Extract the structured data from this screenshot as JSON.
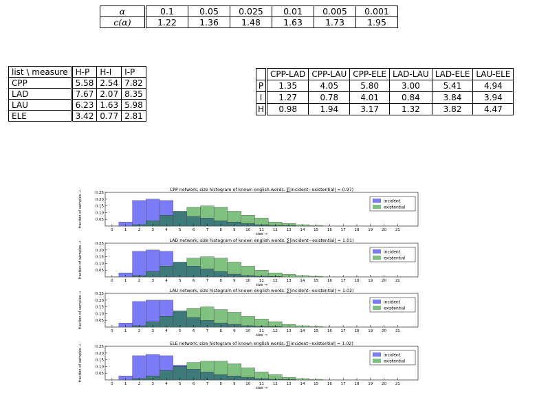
{
  "alpha_table": {
    "rows": [
      {
        "label": "α",
        "values": [
          "0.1",
          "0.05",
          "0.025",
          "0.01",
          "0.005",
          "0.001"
        ]
      },
      {
        "label": "c(α)",
        "values": [
          "1.22",
          "1.36",
          "1.48",
          "1.63",
          "1.73",
          "1.95"
        ]
      }
    ]
  },
  "measure_table": {
    "header": [
      "list \\ measure",
      "H-P",
      "H-I",
      "I-P"
    ],
    "rows": [
      {
        "label": "CPP",
        "values": [
          "5.58",
          "2.54",
          "7.82"
        ]
      },
      {
        "label": "LAD",
        "values": [
          "7.67",
          "2.07",
          "8.35"
        ]
      },
      {
        "label": "LAU",
        "values": [
          "6.23",
          "1.63",
          "5.98"
        ]
      },
      {
        "label": "ELE",
        "values": [
          "3.42",
          "0.77",
          "2.81"
        ]
      }
    ]
  },
  "pair_table": {
    "header": [
      "",
      "CPP-LAD",
      "CPP-LAU",
      "CPP-ELE",
      "LAD-LAU",
      "LAD-ELE",
      "LAU-ELE"
    ],
    "rows": [
      {
        "label": "P",
        "values": [
          "1.35",
          "4.05",
          "5.80",
          "3.00",
          "5.41",
          "4.94"
        ]
      },
      {
        "label": "I",
        "values": [
          "1.27",
          "0.78",
          "4.01",
          "0.84",
          "3.84",
          "3.94"
        ]
      },
      {
        "label": "H",
        "values": [
          "0.98",
          "1.94",
          "3.17",
          "1.32",
          "3.82",
          "4.47"
        ]
      }
    ]
  },
  "colors": {
    "incident": "#7b7bf5",
    "existential": "#80c080",
    "overlap": "#3f7a7a"
  },
  "chart_data": [
    {
      "type": "bar",
      "title": "CPP network, size histogram of known english words. ∑|incident−existential| = 0.97)",
      "xlabel": "size →",
      "ylabel": "fraction of samples →",
      "x": [
        0,
        1,
        2,
        3,
        4,
        5,
        6,
        7,
        8,
        9,
        10,
        11,
        12,
        13,
        14,
        15,
        16,
        17,
        18,
        19,
        20,
        21
      ],
      "ylim": [
        0,
        0.25
      ],
      "yticks": [
        "0.05",
        "0.10",
        "0.15",
        "0.20",
        "0.25"
      ],
      "legend_position": "top-right",
      "series": [
        {
          "name": "incident",
          "values": [
            0,
            0.03,
            0.19,
            0.2,
            0.19,
            0.11,
            0.07,
            0.06,
            0.04,
            0.03,
            0.02,
            0.01,
            0.005,
            0.003,
            0,
            0,
            0,
            0,
            0,
            0,
            0,
            0
          ]
        },
        {
          "name": "existential",
          "values": [
            0,
            0,
            0.01,
            0.04,
            0.08,
            0.11,
            0.14,
            0.15,
            0.14,
            0.11,
            0.08,
            0.06,
            0.03,
            0.02,
            0.01,
            0.005,
            0,
            0,
            0,
            0,
            0,
            0
          ]
        }
      ]
    },
    {
      "type": "bar",
      "title": "LAD network, size histogram of known english words. ∑|incident−existential| = 1.01)",
      "xlabel": "size →",
      "ylabel": "fraction of samples →",
      "x": [
        0,
        1,
        2,
        3,
        4,
        5,
        6,
        7,
        8,
        9,
        10,
        11,
        12,
        13,
        14,
        15,
        16,
        17,
        18,
        19,
        20,
        21
      ],
      "ylim": [
        0,
        0.25
      ],
      "yticks": [
        "0.05",
        "0.10",
        "0.15",
        "0.20",
        "0.25"
      ],
      "legend_position": "top-right",
      "series": [
        {
          "name": "incident",
          "values": [
            0,
            0.03,
            0.19,
            0.2,
            0.19,
            0.11,
            0.08,
            0.06,
            0.04,
            0.02,
            0.01,
            0.005,
            0.003,
            0,
            0,
            0,
            0,
            0,
            0,
            0,
            0,
            0
          ]
        },
        {
          "name": "existential",
          "values": [
            0,
            0,
            0.01,
            0.04,
            0.08,
            0.11,
            0.14,
            0.15,
            0.14,
            0.11,
            0.08,
            0.05,
            0.03,
            0.02,
            0.01,
            0.005,
            0,
            0,
            0,
            0,
            0,
            0
          ]
        }
      ]
    },
    {
      "type": "bar",
      "title": "LAU network, size histogram of known english words. ∑|incident−existential| = 1.02)",
      "xlabel": "size →",
      "ylabel": "fraction of samples →",
      "x": [
        0,
        1,
        2,
        3,
        4,
        5,
        6,
        7,
        8,
        9,
        10,
        11,
        12,
        13,
        14,
        15,
        16,
        17,
        18,
        19,
        20,
        21
      ],
      "ylim": [
        0,
        0.25
      ],
      "yticks": [
        "0.05",
        "0.10",
        "0.15",
        "0.20",
        "0.25"
      ],
      "legend_position": "top-right",
      "series": [
        {
          "name": "incident",
          "values": [
            0,
            0.03,
            0.19,
            0.2,
            0.2,
            0.12,
            0.07,
            0.05,
            0.03,
            0.02,
            0.01,
            0.005,
            0.003,
            0,
            0,
            0,
            0,
            0,
            0,
            0,
            0,
            0
          ]
        },
        {
          "name": "existential",
          "values": [
            0,
            0,
            0.01,
            0.04,
            0.08,
            0.12,
            0.14,
            0.15,
            0.13,
            0.11,
            0.08,
            0.06,
            0.04,
            0.02,
            0.01,
            0.005,
            0,
            0,
            0,
            0,
            0,
            0
          ]
        }
      ]
    },
    {
      "type": "bar",
      "title": "ELE network, size histogram of known english words. ∑|incident−existential| = 1.02)",
      "xlabel": "size →",
      "ylabel": "fraction of samples →",
      "x": [
        0,
        1,
        2,
        3,
        4,
        5,
        6,
        7,
        8,
        9,
        10,
        11,
        12,
        13,
        14,
        15,
        16,
        17,
        18,
        19,
        20,
        21
      ],
      "ylim": [
        0,
        0.25
      ],
      "yticks": [
        "0.05",
        "0.10",
        "0.15",
        "0.20",
        "0.25"
      ],
      "legend_position": "top-right",
      "series": [
        {
          "name": "incident",
          "values": [
            0,
            0.03,
            0.18,
            0.19,
            0.18,
            0.11,
            0.08,
            0.06,
            0.04,
            0.03,
            0.02,
            0.01,
            0.005,
            0.003,
            0,
            0,
            0,
            0,
            0,
            0,
            0,
            0
          ]
        },
        {
          "name": "existential",
          "values": [
            0,
            0,
            0.01,
            0.03,
            0.07,
            0.1,
            0.13,
            0.14,
            0.14,
            0.12,
            0.09,
            0.06,
            0.04,
            0.02,
            0.01,
            0.005,
            0,
            0,
            0,
            0,
            0,
            0
          ]
        }
      ]
    }
  ]
}
